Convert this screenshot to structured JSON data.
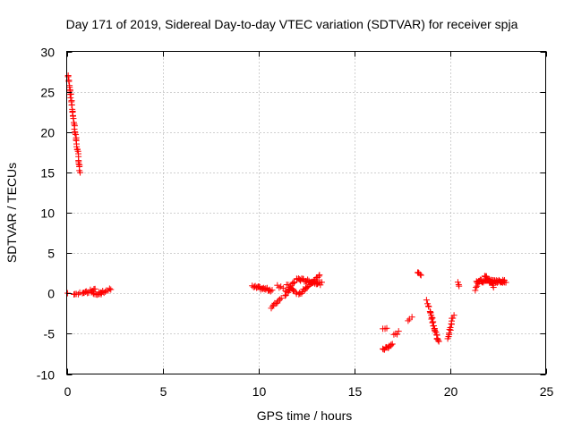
{
  "chart_data": {
    "type": "scatter",
    "title": "Day 171 of 2019, Sidereal Day-to-day VTEC variation (SDTVAR) for receiver spja",
    "xlabel": "GPS time / hours",
    "ylabel": "SDTVAR / TECUs",
    "xlim": [
      0,
      25
    ],
    "ylim": [
      -10,
      30
    ],
    "xticks": [
      "0",
      "5",
      "10",
      "15",
      "20",
      "25"
    ],
    "yticks": [
      "-10",
      "-5",
      "0",
      "5",
      "10",
      "15",
      "20",
      "25",
      "30"
    ],
    "grid": true,
    "marker": "plus",
    "color": "#ff0000",
    "series": [
      {
        "name": "SDTVAR",
        "segments": [
          {
            "x": [
              0.05,
              0.45
            ],
            "y": [
              0.0,
              0.0
            ],
            "n": 2
          },
          {
            "x": [
              0.08,
              0.7
            ],
            "y": [
              27.0,
              15.0
            ],
            "n": 45
          },
          {
            "x": [
              0.4,
              0.9
            ],
            "y": [
              -0.3,
              0.2
            ],
            "n": 6
          },
          {
            "x": [
              0.9,
              1.5
            ],
            "y": [
              0.0,
              0.6
            ],
            "n": 10
          },
          {
            "x": [
              1.3,
              1.8
            ],
            "y": [
              0.2,
              -0.2
            ],
            "n": 8
          },
          {
            "x": [
              1.7,
              2.3
            ],
            "y": [
              0.0,
              0.5
            ],
            "n": 10
          },
          {
            "x": [
              9.7,
              10.7
            ],
            "y": [
              0.8,
              0.4
            ],
            "n": 22
          },
          {
            "x": [
              10.7,
              11.2
            ],
            "y": [
              -1.8,
              -0.5
            ],
            "n": 10
          },
          {
            "x": [
              11.0,
              11.4
            ],
            "y": [
              1.0,
              0.5
            ],
            "n": 5
          },
          {
            "x": [
              11.4,
              11.9
            ],
            "y": [
              -0.2,
              1.5
            ],
            "n": 12
          },
          {
            "x": [
              11.5,
              12.0
            ],
            "y": [
              1.0,
              0.0
            ],
            "n": 10
          },
          {
            "x": [
              12.0,
              13.3
            ],
            "y": [
              1.8,
              1.2
            ],
            "n": 30
          },
          {
            "x": [
              12.1,
              13.2
            ],
            "y": [
              -0.2,
              2.2
            ],
            "n": 22
          },
          {
            "x": [
              16.5,
              16.7
            ],
            "y": [
              -4.3,
              -4.3
            ],
            "n": 3
          },
          {
            "x": [
              16.5,
              17.0
            ],
            "y": [
              -7.0,
              -6.3
            ],
            "n": 12
          },
          {
            "x": [
              17.1,
              17.3
            ],
            "y": [
              -5.2,
              -4.8
            ],
            "n": 4
          },
          {
            "x": [
              17.8,
              18.0
            ],
            "y": [
              -3.3,
              -3.0
            ],
            "n": 3
          },
          {
            "x": [
              18.3,
              18.5
            ],
            "y": [
              2.6,
              2.2
            ],
            "n": 5
          },
          {
            "x": [
              18.8,
              19.0
            ],
            "y": [
              -0.8,
              -2.5
            ],
            "n": 6
          },
          {
            "x": [
              19.0,
              19.4
            ],
            "y": [
              -2.5,
              -6.1
            ],
            "n": 22
          },
          {
            "x": [
              19.9,
              20.1
            ],
            "y": [
              -5.5,
              -3.5
            ],
            "n": 10
          },
          {
            "x": [
              20.1,
              20.2
            ],
            "y": [
              -3.2,
              -2.8
            ],
            "n": 3
          },
          {
            "x": [
              20.4,
              20.5
            ],
            "y": [
              1.3,
              0.8
            ],
            "n": 3
          },
          {
            "x": [
              21.3,
              21.6
            ],
            "y": [
              0.5,
              1.8
            ],
            "n": 6
          },
          {
            "x": [
              21.4,
              22.9
            ],
            "y": [
              1.5,
              1.5
            ],
            "n": 50
          },
          {
            "x": [
              21.8,
              22.3
            ],
            "y": [
              2.3,
              0.8
            ],
            "n": 14
          }
        ]
      }
    ]
  }
}
